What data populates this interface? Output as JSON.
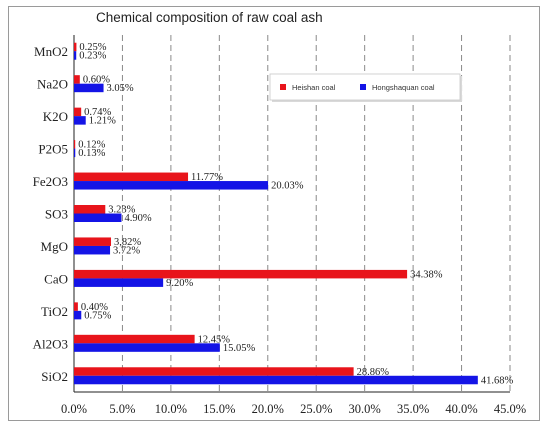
{
  "chart_data": {
    "type": "bar",
    "orientation": "horizontal",
    "title": "Chemical composition of raw coal ash",
    "categories": [
      "MnO2",
      "Na2O",
      "K2O",
      "P2O5",
      "Fe2O3",
      "SO3",
      "MgO",
      "CaO",
      "TiO2",
      "Al2O3",
      "SiO2"
    ],
    "series": [
      {
        "name": "Heishan coal",
        "color": "#e8141b",
        "values": [
          0.25,
          0.6,
          0.74,
          0.12,
          11.77,
          3.23,
          3.82,
          34.38,
          0.4,
          12.45,
          28.86
        ],
        "labels": [
          "0.25%",
          "0.60%",
          "0.74%",
          "0.12%",
          "11.77%",
          "3.23%",
          "3,82%",
          "34.38%",
          "0.40%",
          "12.45%",
          "28.86%"
        ]
      },
      {
        "name": "Hongshaquan coal",
        "color": "#1414e6",
        "values": [
          0.23,
          3.05,
          1.21,
          0.13,
          20.03,
          4.9,
          3.72,
          9.2,
          0.75,
          15.05,
          41.68
        ],
        "labels": [
          "0.23%",
          "3.05%",
          "1.21%",
          "0.13%",
          "20.03%",
          "4.90%",
          "3.72%",
          "9.20%",
          "0.75%",
          "15.05%",
          "41.68%"
        ]
      }
    ],
    "xlim": [
      0,
      45
    ],
    "xticks": [
      0,
      5,
      10,
      15,
      20,
      25,
      30,
      35,
      40,
      45
    ],
    "xtick_labels": [
      "0.0%",
      "5.0%",
      "10.0%",
      "15.0%",
      "20.0%",
      "25.0%",
      "30.0%",
      "35.0%",
      "40.0%",
      "45.0%"
    ],
    "grid": "vertical dashed",
    "legend_position": "top-right"
  }
}
